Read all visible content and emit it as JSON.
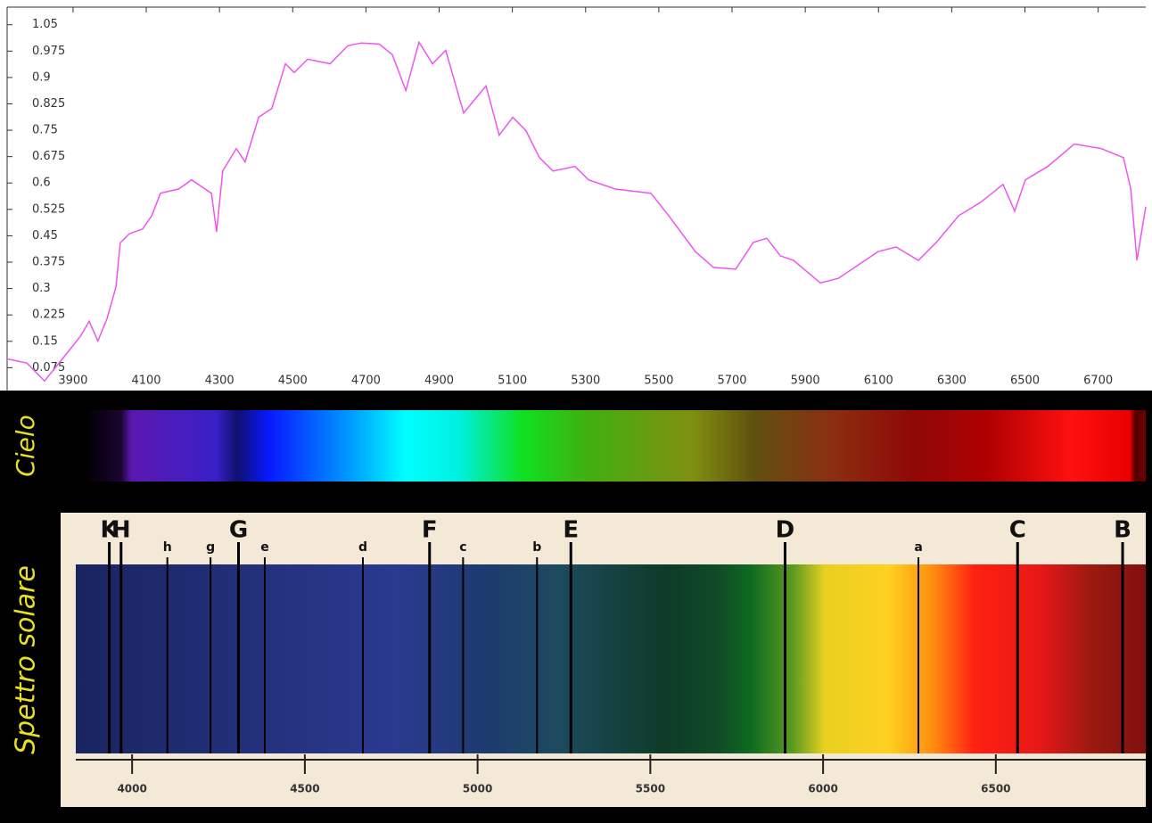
{
  "chart_data": {
    "type": "line",
    "x": [
      3720,
      3774,
      3822,
      3871,
      3920,
      3944,
      3968,
      3993,
      4017,
      4029,
      4054,
      4090,
      4115,
      4139,
      4188,
      4224,
      4261,
      4278,
      4292,
      4309,
      4346,
      4370,
      4407,
      4443,
      4480,
      4504,
      4541,
      4602,
      4650,
      4687,
      4736,
      4772,
      4809,
      4845,
      4882,
      4918,
      4967,
      5028,
      5064,
      5101,
      5137,
      5174,
      5211,
      5271,
      5308,
      5381,
      5478,
      5527,
      5600,
      5649,
      5710,
      5758,
      5795,
      5832,
      5868,
      5941,
      5990,
      6099,
      6148,
      6209,
      6258,
      6319,
      6379,
      6440,
      6472,
      6501,
      6562,
      6635,
      6708,
      6769,
      6789,
      6806,
      6830
    ],
    "series": [
      {
        "color": "#ee55ee",
        "values": [
          0.1,
          0.088,
          0.037,
          0.1,
          0.164,
          0.207,
          0.151,
          0.215,
          0.304,
          0.43,
          0.456,
          0.469,
          0.507,
          0.571,
          0.583,
          0.609,
          0.583,
          0.571,
          0.461,
          0.634,
          0.698,
          0.66,
          0.787,
          0.812,
          0.939,
          0.914,
          0.952,
          0.939,
          0.99,
          0.998,
          0.995,
          0.965,
          0.863,
          1.0,
          0.939,
          0.977,
          0.799,
          0.876,
          0.736,
          0.787,
          0.749,
          0.672,
          0.634,
          0.647,
          0.609,
          0.583,
          0.571,
          0.507,
          0.405,
          0.36,
          0.355,
          0.431,
          0.443,
          0.393,
          0.38,
          0.316,
          0.329,
          0.405,
          0.418,
          0.38,
          0.431,
          0.507,
          0.545,
          0.596,
          0.52,
          0.609,
          0.647,
          0.711,
          0.698,
          0.672,
          0.583,
          0.38,
          0.533
        ]
      }
    ],
    "xlim": [
      3720,
      6830
    ],
    "ylim": [
      0.01,
      1.1
    ],
    "xticks": [
      3900,
      4100,
      4300,
      4500,
      4700,
      4900,
      5100,
      5300,
      5500,
      5700,
      5900,
      6100,
      6300,
      6500,
      6700
    ],
    "yticks": [
      0.075,
      0.15,
      0.225,
      0.3,
      0.375,
      0.45,
      0.525,
      0.6,
      0.675,
      0.75,
      0.825,
      0.9,
      0.975,
      1.05
    ]
  },
  "sky_spectrum": {
    "label": "Cielo"
  },
  "solar_spectrum": {
    "label": "Spettro solare",
    "xlim": [
      3837,
      6934
    ],
    "xticks": [
      4000,
      4500,
      5000,
      5500,
      6000,
      6500
    ],
    "lines": [
      {
        "label": "K",
        "wavelength": 3934
      },
      {
        "label": "H",
        "wavelength": 3968
      },
      {
        "label": "h",
        "wavelength": 4102
      },
      {
        "label": "g",
        "wavelength": 4227
      },
      {
        "label": "G",
        "wavelength": 4308
      },
      {
        "label": "e",
        "wavelength": 4384
      },
      {
        "label": "d",
        "wavelength": 4668
      },
      {
        "label": "F",
        "wavelength": 4861
      },
      {
        "label": "c",
        "wavelength": 4958
      },
      {
        "label": "b",
        "wavelength": 5172
      },
      {
        "label": "E",
        "wavelength": 5270
      },
      {
        "label": "D",
        "wavelength": 5890
      },
      {
        "label": "a",
        "wavelength": 6276
      },
      {
        "label": "C",
        "wavelength": 6563
      },
      {
        "label": "B",
        "wavelength": 6867
      }
    ]
  }
}
